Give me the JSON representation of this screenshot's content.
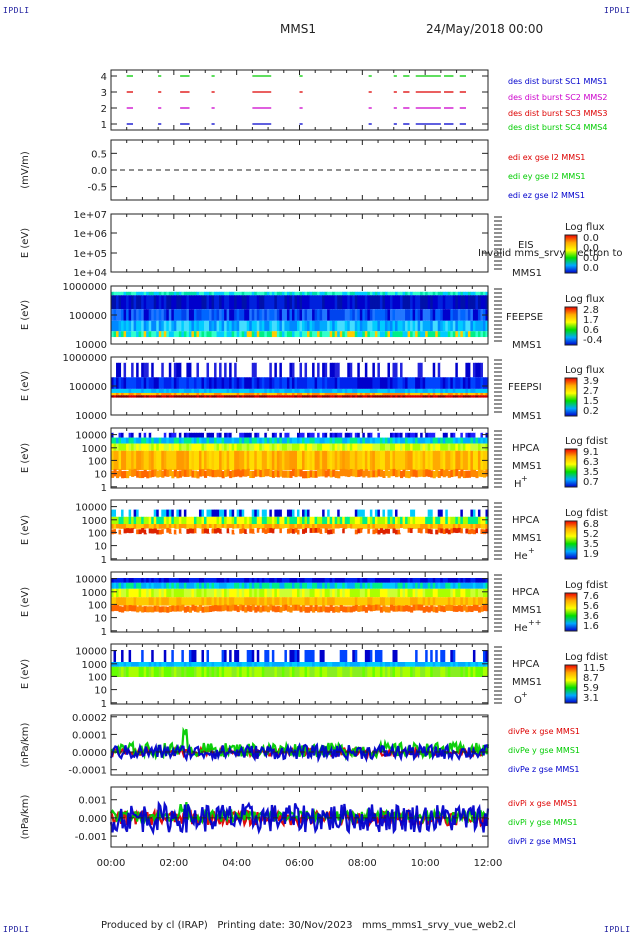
{
  "corner_label": "IPDLI",
  "header": {
    "spacecraft": "MMS1",
    "date": "24/May/2018 00:00"
  },
  "footer": "Produced by cl (IRAP)   Printing date: 30/Nov/2023   mms_mms1_srvy_vue_web2.cl",
  "time_axis": {
    "ticks": [
      "00:00",
      "02:00",
      "04:00",
      "06:00",
      "08:00",
      "10:00",
      "12:00"
    ],
    "range_hours": [
      0,
      12
    ]
  },
  "colors": {
    "blue": "#0000cc",
    "green": "#00cc00",
    "red": "#dd0000",
    "magenta": "#cc00cc"
  },
  "chart_data": [
    {
      "id": "panel-burst",
      "type": "scatter",
      "yticks": [
        "1",
        "2",
        "3",
        "4"
      ],
      "legend": [
        {
          "text": "des dist burst SC1 MMS1",
          "color": "#0000cc"
        },
        {
          "text": "des dist burst SC2 MMS2",
          "color": "#cc00cc"
        },
        {
          "text": "des dist burst SC3 MMS3",
          "color": "#dd0000"
        },
        {
          "text": "des dist burst SC4 MMS4",
          "color": "#00cc00"
        }
      ]
    },
    {
      "id": "panel-edi",
      "type": "line",
      "ylabel": "(mV/m)",
      "yticks": [
        "0.5",
        "0.0",
        "-0.5"
      ],
      "ylim": [
        -0.9,
        0.9
      ],
      "legend": [
        {
          "text": "edi ex gse l2 MMS1",
          "color": "#dd0000"
        },
        {
          "text": "edi ey gse l2 MMS1",
          "color": "#00cc00"
        },
        {
          "text": "edi ez gse l2 MMS1",
          "color": "#0000cc"
        }
      ]
    },
    {
      "id": "panel-eis",
      "type": "heatmap",
      "ylabel": "E (eV)",
      "yticks": [
        "1e+07",
        "1e+06",
        "1e+05",
        "1e+04"
      ],
      "labels": [
        "EIS",
        "MMS1"
      ],
      "overlap_text": "Invalid mms_srvy electron to",
      "cbar_title": "Log flux",
      "cbar_ticks": [
        "0.0",
        "0.0",
        "0.0",
        "0.0"
      ]
    },
    {
      "id": "panel-feepse",
      "type": "heatmap",
      "ylabel": "E (eV)",
      "yticks": [
        "1000000",
        "100000",
        "10000"
      ],
      "labels": [
        "FEEPSE",
        "MMS1"
      ],
      "cbar_title": "Log flux",
      "cbar_ticks": [
        "2.8",
        "1.7",
        "0.6",
        "-0.4"
      ]
    },
    {
      "id": "panel-feepsi",
      "type": "heatmap",
      "ylabel": "E (eV)",
      "yticks": [
        "1000000",
        "100000",
        "10000"
      ],
      "labels": [
        "FEEPSI",
        "MMS1"
      ],
      "cbar_title": "Log flux",
      "cbar_ticks": [
        "3.9",
        "2.7",
        "1.5",
        "0.2"
      ]
    },
    {
      "id": "panel-hpca-h",
      "type": "heatmap",
      "ylabel": "E (eV)",
      "yticks": [
        "10000",
        "1000",
        "100",
        "10",
        "1"
      ],
      "labels": [
        "HPCA",
        "MMS1",
        "H+"
      ],
      "cbar_title": "Log fdist",
      "cbar_ticks": [
        "9.1",
        "6.3",
        "3.5",
        "0.7"
      ]
    },
    {
      "id": "panel-hpca-he",
      "type": "heatmap",
      "ylabel": "E (eV)",
      "yticks": [
        "10000",
        "1000",
        "100",
        "10",
        "1"
      ],
      "labels": [
        "HPCA",
        "MMS1",
        "He+"
      ],
      "cbar_title": "Log fdist",
      "cbar_ticks": [
        "6.8",
        "5.2",
        "3.5",
        "1.9"
      ]
    },
    {
      "id": "panel-hpca-hepp",
      "type": "heatmap",
      "ylabel": "E (eV)",
      "yticks": [
        "10000",
        "1000",
        "100",
        "10",
        "1"
      ],
      "labels": [
        "HPCA",
        "MMS1",
        "He++"
      ],
      "cbar_title": "Log fdist",
      "cbar_ticks": [
        "7.6",
        "5.6",
        "3.6",
        "1.6"
      ]
    },
    {
      "id": "panel-hpca-o",
      "type": "heatmap",
      "ylabel": "E (eV)",
      "yticks": [
        "10000",
        "1000",
        "100",
        "10",
        "1"
      ],
      "labels": [
        "HPCA",
        "MMS1",
        "O+"
      ],
      "cbar_title": "Log fdist",
      "cbar_ticks": [
        "11.5",
        "8.7",
        "5.9",
        "3.1"
      ]
    },
    {
      "id": "panel-divpe",
      "type": "line",
      "ylabel": "(nPa/km)",
      "yticks": [
        "0.0002",
        "0.0001",
        "0.0000",
        "-0.0001"
      ],
      "ylim": [
        -0.00013,
        0.00021
      ],
      "legend": [
        {
          "text": "divPe x gse MMS1",
          "color": "#dd0000"
        },
        {
          "text": "divPe y gse MMS1",
          "color": "#00cc00"
        },
        {
          "text": "divPe z gse MMS1",
          "color": "#0000cc"
        }
      ]
    },
    {
      "id": "panel-divpi",
      "type": "line",
      "ylabel": "(nPa/km)",
      "yticks": [
        "0.001",
        "0.000",
        "-0.001"
      ],
      "ylim": [
        -0.0016,
        0.0017
      ],
      "legend": [
        {
          "text": "divPi x gse MMS1",
          "color": "#dd0000"
        },
        {
          "text": "divPi y gse MMS1",
          "color": "#00cc00"
        },
        {
          "text": "divPi z gse MMS1",
          "color": "#0000cc"
        }
      ]
    }
  ]
}
